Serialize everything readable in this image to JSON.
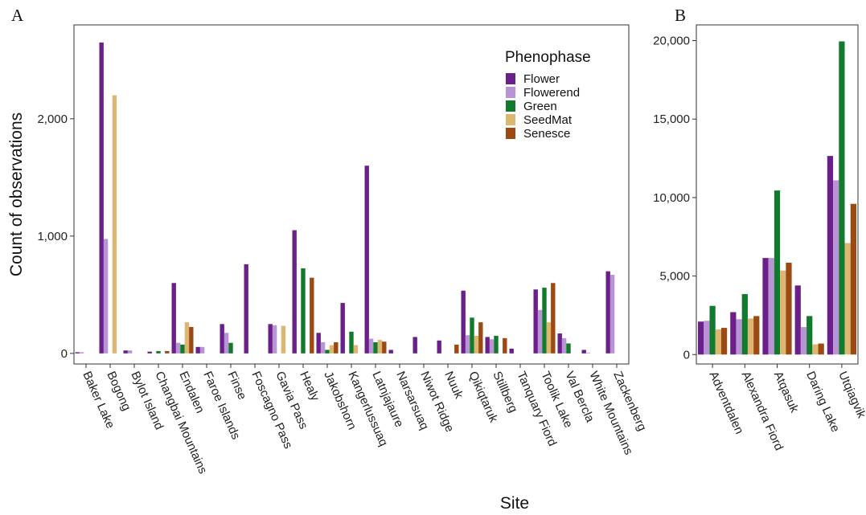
{
  "panels": {
    "a_label": "A",
    "b_label": "B"
  },
  "axes": {
    "ylabel": "Count of observations",
    "xlabel": "Site"
  },
  "legend": {
    "title": "Phenophase",
    "items": [
      {
        "name": "Flower",
        "color": "#6a1f8a"
      },
      {
        "name": "Flowerend",
        "color": "#b994d4"
      },
      {
        "name": "Green",
        "color": "#127a2c"
      },
      {
        "name": "SeedMat",
        "color": "#dcb772"
      },
      {
        "name": "Senesce",
        "color": "#9c4a12"
      }
    ]
  },
  "chart_data": [
    {
      "type": "bar",
      "panel": "A",
      "title": "",
      "xlabel": "Site",
      "ylabel": "Count of observations",
      "ylim": [
        -90,
        2800
      ],
      "yticks": [
        0,
        1000,
        2000
      ],
      "ytick_labels": [
        "0",
        "1,000",
        "2,000"
      ],
      "categories": [
        "Baker Lake",
        "Bogong",
        "Bylot Island",
        "Changbai Mountains",
        "Endalen",
        "Faroe Islands",
        "Finse",
        "Foscagno Pass",
        "Gavia Pass",
        "Healy",
        "Jakobshorn",
        "Kangerlussuaq",
        "Latnjajaure",
        "Narsarsuaq",
        "Niwot Ridge",
        "Nuuk",
        "Qikiqtaruk",
        "Stillberg",
        "Tanquary Fiord",
        "Toolik Lake",
        "Val Bercla",
        "White Mountains",
        "Zackenberg"
      ],
      "series": [
        {
          "name": "Flower",
          "values": [
            10,
            2650,
            25,
            15,
            600,
            55,
            250,
            760,
            250,
            1050,
            175,
            430,
            1600,
            30,
            140,
            110,
            535,
            140,
            40,
            545,
            170,
            30,
            700
          ]
        },
        {
          "name": "Flowerend",
          "values": [
            10,
            975,
            25,
            0,
            90,
            55,
            175,
            0,
            240,
            0,
            95,
            0,
            125,
            0,
            0,
            0,
            155,
            120,
            0,
            370,
            130,
            5,
            670
          ]
        },
        {
          "name": "Green",
          "values": [
            0,
            0,
            0,
            20,
            75,
            0,
            90,
            0,
            0,
            725,
            30,
            185,
            95,
            0,
            0,
            0,
            305,
            150,
            0,
            560,
            85,
            0,
            0
          ]
        },
        {
          "name": "SeedMat",
          "values": [
            0,
            2200,
            0,
            0,
            265,
            0,
            0,
            0,
            235,
            0,
            70,
            70,
            115,
            0,
            0,
            0,
            150,
            0,
            0,
            265,
            0,
            0,
            0
          ]
        },
        {
          "name": "Senesce",
          "values": [
            0,
            0,
            0,
            20,
            225,
            0,
            0,
            0,
            0,
            645,
            95,
            0,
            100,
            0,
            0,
            75,
            265,
            130,
            0,
            600,
            0,
            0,
            0
          ]
        }
      ]
    },
    {
      "type": "bar",
      "panel": "B",
      "title": "",
      "xlabel": "Site",
      "ylabel": "",
      "ylim": [
        -600,
        21000
      ],
      "yticks": [
        0,
        5000,
        10000,
        15000,
        20000
      ],
      "ytick_labels": [
        "0",
        "5,000",
        "10,000",
        "15,000",
        "20,000"
      ],
      "categories": [
        "Adventdalen",
        "Alexandra Fiord",
        "Atqasuk",
        "Daring Lake",
        "Utqiagvik"
      ],
      "series": [
        {
          "name": "Flower",
          "values": [
            2100,
            2700,
            6150,
            4400,
            12650
          ]
        },
        {
          "name": "Flowerend",
          "values": [
            2150,
            2250,
            6150,
            1750,
            11100
          ]
        },
        {
          "name": "Green",
          "values": [
            3100,
            3850,
            10450,
            2450,
            19950
          ]
        },
        {
          "name": "SeedMat",
          "values": [
            1600,
            2300,
            5350,
            650,
            7100
          ]
        },
        {
          "name": "Senesce",
          "values": [
            1700,
            2450,
            5850,
            700,
            9600
          ]
        }
      ]
    }
  ]
}
